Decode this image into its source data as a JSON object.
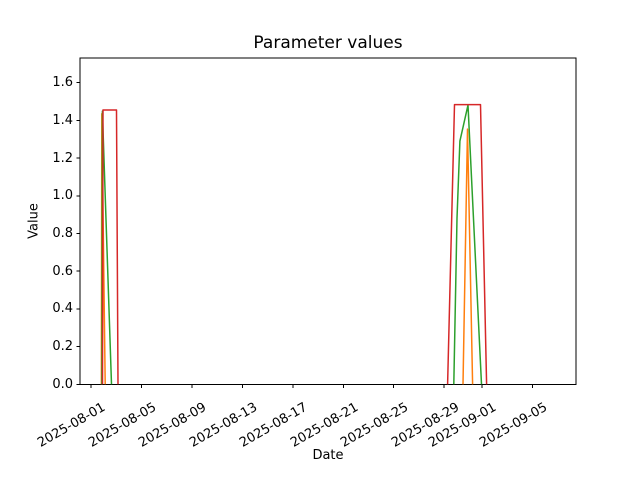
{
  "figure": {
    "title": "Parameter values",
    "xlabel": "Date",
    "ylabel": "Value"
  },
  "chart_data": {
    "type": "line",
    "title": "Parameter values",
    "xlabel": "Date",
    "ylabel": "Value",
    "grid": false,
    "legend": false,
    "x_axis": {
      "unit": "days-since-epoch",
      "epoch": "2025-08-01",
      "xlim_days": [
        -0.87,
        38.45
      ],
      "ticks": [
        {
          "label": "2025-08-01",
          "day": 0
        },
        {
          "label": "2025-08-05",
          "day": 4
        },
        {
          "label": "2025-08-09",
          "day": 8
        },
        {
          "label": "2025-08-13",
          "day": 12
        },
        {
          "label": "2025-08-17",
          "day": 16
        },
        {
          "label": "2025-08-21",
          "day": 20
        },
        {
          "label": "2025-08-25",
          "day": 24
        },
        {
          "label": "2025-08-29",
          "day": 28
        },
        {
          "label": "2025-09-01",
          "day": 31
        },
        {
          "label": "2025-09-05",
          "day": 35
        }
      ]
    },
    "y_axis": {
      "ylim": [
        0,
        1.731
      ],
      "ticks": [
        {
          "label": "0.0",
          "value": 0.0
        },
        {
          "label": "0.2",
          "value": 0.2
        },
        {
          "label": "0.4",
          "value": 0.4
        },
        {
          "label": "0.6",
          "value": 0.6
        },
        {
          "label": "0.8",
          "value": 0.8
        },
        {
          "label": "1.0",
          "value": 1.0
        },
        {
          "label": "1.2",
          "value": 1.2
        },
        {
          "label": "1.4",
          "value": 1.4
        },
        {
          "label": "1.6",
          "value": 1.6
        }
      ]
    },
    "series": [
      {
        "name": "orange-series",
        "color": "#ff7f0e",
        "segments": [
          [
            [
              0.83,
              0
            ],
            [
              0.86,
              1.435
            ],
            [
              1.13,
              0
            ]
          ],
          [
            [
              29.49,
              0
            ],
            [
              29.85,
              1.354
            ],
            [
              30.25,
              0
            ]
          ]
        ]
      },
      {
        "name": "green-series",
        "color": "#2ca02c",
        "segments": [
          [
            [
              0.87,
              0
            ],
            [
              0.905,
              1.448
            ],
            [
              1.63,
              0
            ]
          ],
          [
            [
              28.76,
              0
            ],
            [
              29.02,
              0.88
            ],
            [
              29.25,
              1.29
            ],
            [
              29.89,
              1.481
            ],
            [
              30.96,
              0
            ]
          ]
        ]
      },
      {
        "name": "red-series",
        "color": "#d62728",
        "segments": [
          [
            [
              0.91,
              0
            ],
            [
              0.95,
              1.455
            ],
            [
              2.02,
              1.455
            ],
            [
              2.14,
              0
            ]
          ],
          [
            [
              28.27,
              0
            ],
            [
              28.82,
              1.484
            ],
            [
              30.88,
              1.484
            ],
            [
              31.36,
              0
            ]
          ]
        ]
      }
    ]
  }
}
